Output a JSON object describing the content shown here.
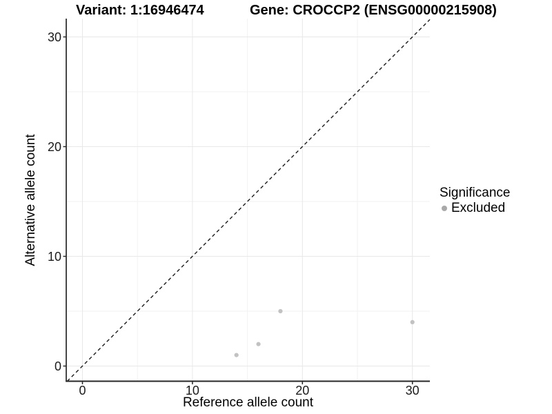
{
  "titles": {
    "variant": "Variant: 1:16946474",
    "gene": "Gene: CROCCP2 (ENSG00000215908)"
  },
  "legend": {
    "title": "Significance",
    "entries": [
      {
        "label": "Excluded",
        "color": "#a9a9a9"
      }
    ]
  },
  "colors": {
    "background": "#ffffff",
    "grid_major": "#e8e8e8",
    "grid_minor": "#f2f2f2",
    "axis_line": "#262626",
    "tick_mark": "#262626",
    "reference_line": "#1a1a1a",
    "point": "#c2c2c2"
  },
  "chart_data": {
    "type": "scatter",
    "title_left": "Variant: 1:16946474",
    "title_right": "Gene: CROCCP2 (ENSG00000215908)",
    "xlabel": "Reference allele count",
    "ylabel": "Alternative allele count",
    "xlim": [
      -1.5,
      31.5
    ],
    "ylim": [
      -1.5,
      31.5
    ],
    "x_ticks": [
      0,
      10,
      20,
      30
    ],
    "y_ticks": [
      0,
      10,
      20,
      30
    ],
    "x_minor_ticks": [
      5,
      15,
      25
    ],
    "y_minor_ticks": [
      5,
      15,
      25
    ],
    "grid": true,
    "aspect": "equal",
    "legend_position": "right",
    "reference_line": {
      "type": "identity",
      "style": "dashed",
      "label": "y = x"
    },
    "series": [
      {
        "name": "Excluded",
        "color": "#c2c2c2",
        "points": [
          {
            "x": 14,
            "y": 1
          },
          {
            "x": 16,
            "y": 2
          },
          {
            "x": 18,
            "y": 5
          },
          {
            "x": 30,
            "y": 4
          }
        ]
      }
    ]
  }
}
